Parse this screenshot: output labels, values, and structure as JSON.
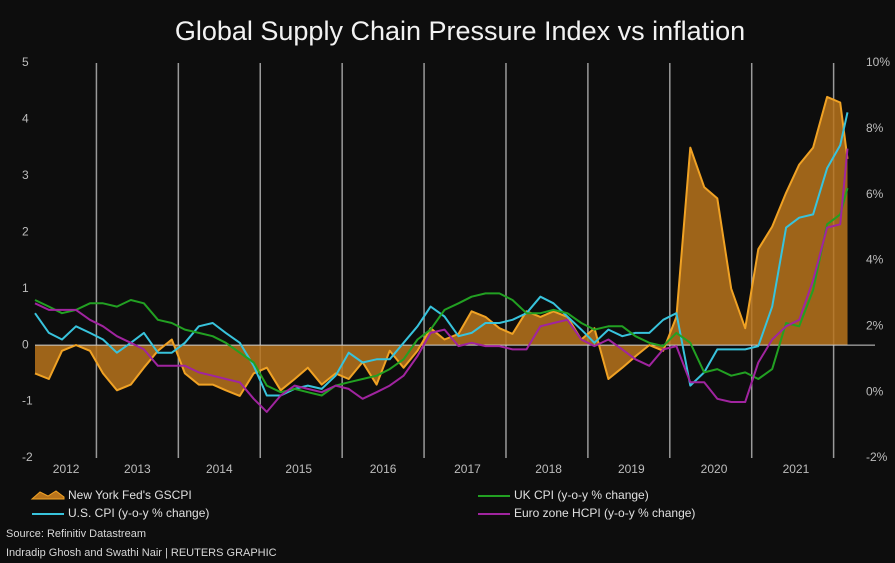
{
  "chart_data": {
    "type": "line",
    "title": "Global Supply Chain Pressure Index vs inflation",
    "x": [
      2012.25,
      2012.42,
      2012.58,
      2012.75,
      2012.92,
      2013.08,
      2013.25,
      2013.42,
      2013.58,
      2013.75,
      2013.92,
      2014.08,
      2014.25,
      2014.42,
      2014.58,
      2014.75,
      2014.92,
      2015.08,
      2015.25,
      2015.42,
      2015.58,
      2015.75,
      2015.92,
      2016.08,
      2016.25,
      2016.42,
      2016.58,
      2016.75,
      2016.92,
      2017.08,
      2017.25,
      2017.42,
      2017.58,
      2017.75,
      2017.92,
      2018.08,
      2018.25,
      2018.42,
      2018.58,
      2018.75,
      2018.92,
      2019.08,
      2019.25,
      2019.42,
      2019.58,
      2019.75,
      2019.92,
      2020.08,
      2020.25,
      2020.42,
      2020.58,
      2020.75,
      2020.92,
      2021.08,
      2021.25,
      2021.42,
      2021.58,
      2021.75,
      2021.92,
      2022.08,
      2022.17
    ],
    "series": [
      {
        "name": "New York Fed's GSCPI",
        "color": "#f0a224",
        "fill": "#b8741c",
        "axis": "y",
        "values": [
          -0.5,
          -0.6,
          -0.1,
          0.0,
          -0.1,
          -0.5,
          -0.8,
          -0.7,
          -0.4,
          -0.1,
          0.1,
          -0.5,
          -0.7,
          -0.7,
          -0.8,
          -0.9,
          -0.5,
          -0.4,
          -0.8,
          -0.6,
          -0.4,
          -0.7,
          -0.5,
          -0.6,
          -0.3,
          -0.7,
          -0.1,
          -0.4,
          -0.1,
          0.3,
          0.1,
          0.2,
          0.6,
          0.5,
          0.3,
          0.2,
          0.6,
          0.5,
          0.6,
          0.5,
          0.1,
          0.3,
          -0.6,
          -0.4,
          -0.2,
          0.0,
          -0.1,
          0.5,
          3.5,
          2.8,
          2.6,
          1.0,
          0.3,
          1.7,
          2.1,
          2.7,
          3.2,
          3.5,
          4.4,
          4.3,
          3.3
        ]
      },
      {
        "name": "U.S. CPI (y-o-y % change)",
        "color": "#38c3dc",
        "axis": "y2",
        "values": [
          2.4,
          1.8,
          1.6,
          2.0,
          1.8,
          1.6,
          1.2,
          1.5,
          1.8,
          1.2,
          1.2,
          1.5,
          2.0,
          2.1,
          1.8,
          1.5,
          0.8,
          -0.1,
          -0.1,
          0.1,
          0.2,
          0.1,
          0.5,
          1.2,
          0.9,
          1.0,
          1.0,
          1.5,
          2.0,
          2.6,
          2.3,
          1.7,
          1.8,
          2.1,
          2.1,
          2.2,
          2.4,
          2.9,
          2.7,
          2.3,
          1.9,
          1.5,
          1.9,
          1.7,
          1.8,
          1.8,
          2.2,
          2.4,
          0.2,
          0.6,
          1.3,
          1.3,
          1.3,
          1.4,
          2.6,
          5.0,
          5.3,
          5.4,
          6.8,
          7.5,
          8.5
        ]
      },
      {
        "name": "UK CPI (y-o-y % change)",
        "color": "#22a022",
        "axis": "y2",
        "values": [
          2.8,
          2.6,
          2.4,
          2.5,
          2.7,
          2.7,
          2.6,
          2.8,
          2.7,
          2.2,
          2.1,
          1.9,
          1.8,
          1.7,
          1.5,
          1.2,
          0.9,
          0.2,
          0.0,
          0.1,
          0.0,
          -0.1,
          0.2,
          0.3,
          0.4,
          0.5,
          0.7,
          1.0,
          1.6,
          1.9,
          2.5,
          2.7,
          2.9,
          3.0,
          3.0,
          2.8,
          2.4,
          2.4,
          2.5,
          2.4,
          2.1,
          1.9,
          2.0,
          2.0,
          1.7,
          1.5,
          1.4,
          1.8,
          1.5,
          0.6,
          0.7,
          0.5,
          0.6,
          0.4,
          0.7,
          2.1,
          2.0,
          3.1,
          5.1,
          5.4,
          6.2
        ]
      },
      {
        "name": "Euro zone HCPI (y-o-y % change)",
        "color": "#a0249f",
        "axis": "y2",
        "values": [
          2.7,
          2.5,
          2.5,
          2.5,
          2.2,
          2.0,
          1.7,
          1.5,
          1.3,
          0.8,
          0.8,
          0.8,
          0.6,
          0.5,
          0.4,
          0.3,
          -0.2,
          -0.6,
          -0.1,
          0.2,
          0.1,
          0.0,
          0.2,
          0.1,
          -0.2,
          0.0,
          0.2,
          0.5,
          1.1,
          1.8,
          1.9,
          1.4,
          1.5,
          1.4,
          1.4,
          1.3,
          1.3,
          2.0,
          2.1,
          2.2,
          1.6,
          1.4,
          1.6,
          1.3,
          1.0,
          0.8,
          1.3,
          1.4,
          0.3,
          0.3,
          -0.2,
          -0.3,
          -0.3,
          0.9,
          1.6,
          2.0,
          2.2,
          3.4,
          5.0,
          5.1,
          7.4
        ]
      }
    ],
    "xlim": [
      2012.25,
      2022.2
    ],
    "xticks": [
      {
        "value": 2012.63,
        "label": "2012"
      },
      {
        "value": 2013.5,
        "label": "2013"
      },
      {
        "value": 2014.5,
        "label": "2014"
      },
      {
        "value": 2015.47,
        "label": "2015"
      },
      {
        "value": 2016.5,
        "label": "2016"
      },
      {
        "value": 2017.53,
        "label": "2017"
      },
      {
        "value": 2018.52,
        "label": "2018"
      },
      {
        "value": 2019.53,
        "label": "2019"
      },
      {
        "value": 2020.54,
        "label": "2020"
      },
      {
        "value": 2021.54,
        "label": "2021"
      }
    ],
    "xgrid": [
      2013,
      2014,
      2015,
      2016,
      2017,
      2018,
      2019,
      2020,
      2021,
      2022
    ],
    "ylim": [
      -2,
      5
    ],
    "yticks": [
      -2,
      -1,
      0,
      1,
      2,
      3,
      4,
      5
    ],
    "y2lim": [
      -2,
      10
    ],
    "y2ticks": [
      {
        "value": -2,
        "label": "-2%"
      },
      {
        "value": 0,
        "label": "0%"
      },
      {
        "value": 2,
        "label": "2%"
      },
      {
        "value": 4,
        "label": "4%"
      },
      {
        "value": 6,
        "label": "6%"
      },
      {
        "value": 8,
        "label": "8%"
      },
      {
        "value": 10,
        "label": "10%"
      }
    ],
    "source": "Source: Refinitiv Datastream",
    "credit": "Indradip Ghosh and Swathi Nair | REUTERS GRAPHIC"
  }
}
